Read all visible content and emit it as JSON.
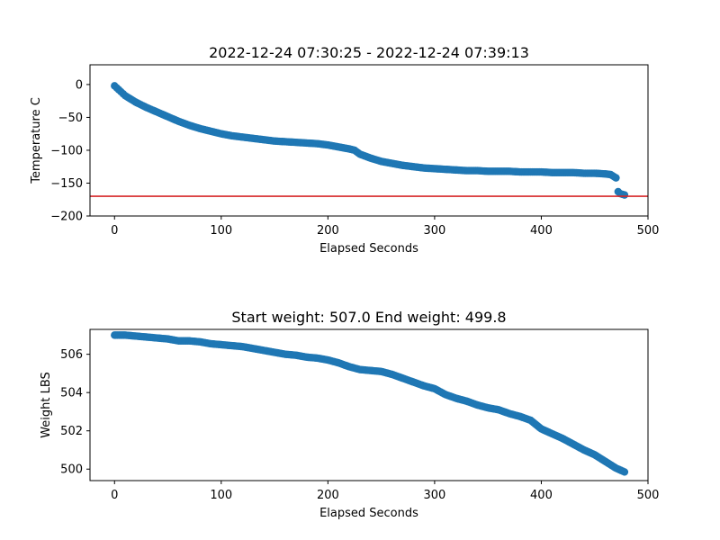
{
  "chart_data": [
    {
      "type": "scatter",
      "title": "2022-12-24 07:30:25 - 2022-12-24 07:39:13",
      "xlabel": "Elapsed Seconds",
      "ylabel": "Temperature C",
      "xlim": [
        -23,
        500
      ],
      "ylim": [
        -200,
        30
      ],
      "xticks": [
        0,
        100,
        200,
        300,
        400,
        500
      ],
      "yticks": [
        0,
        -50,
        -100,
        -150,
        -200
      ],
      "grid": false,
      "marker_color": "#1f77b4",
      "reference_line": {
        "y": -170,
        "color": "#d62728"
      },
      "x": [
        0,
        2,
        4,
        6,
        8,
        10,
        15,
        20,
        25,
        30,
        40,
        50,
        60,
        70,
        80,
        90,
        100,
        110,
        120,
        130,
        140,
        150,
        160,
        170,
        180,
        190,
        200,
        210,
        220,
        225,
        230,
        240,
        250,
        260,
        270,
        280,
        290,
        300,
        310,
        320,
        330,
        340,
        350,
        360,
        370,
        380,
        390,
        400,
        410,
        420,
        430,
        440,
        450,
        460,
        465,
        470,
        472,
        474,
        476,
        478
      ],
      "y": [
        -2,
        -5,
        -8,
        -11,
        -14,
        -17,
        -22,
        -27,
        -31,
        -35,
        -42,
        -49,
        -56,
        -62,
        -67,
        -71,
        -75,
        -78,
        -80,
        -82,
        -84,
        -86,
        -87,
        -88,
        -89,
        -90,
        -92,
        -95,
        -98,
        -100,
        -106,
        -112,
        -117,
        -120,
        -123,
        -125,
        -127,
        -128,
        -129,
        -130,
        -131,
        -131,
        -132,
        -132,
        -132,
        -133,
        -133,
        -133,
        -134,
        -134,
        -134,
        -135,
        -135,
        -136,
        -137,
        -142,
        -163,
        -166,
        -167,
        -168
      ]
    },
    {
      "type": "scatter",
      "title": "Start weight: 507.0 End weight: 499.8",
      "xlabel": "Elapsed Seconds",
      "ylabel": "Weight LBS",
      "xlim": [
        -23,
        500
      ],
      "ylim": [
        499.4,
        507.3
      ],
      "xticks": [
        0,
        100,
        200,
        300,
        400,
        500
      ],
      "yticks": [
        500,
        502,
        504,
        506
      ],
      "grid": false,
      "marker_color": "#1f77b4",
      "x": [
        0,
        10,
        20,
        30,
        40,
        50,
        60,
        70,
        80,
        90,
        100,
        110,
        120,
        130,
        140,
        150,
        160,
        170,
        180,
        190,
        200,
        210,
        220,
        230,
        240,
        250,
        260,
        270,
        280,
        290,
        300,
        310,
        320,
        330,
        340,
        350,
        360,
        370,
        380,
        390,
        400,
        410,
        420,
        430,
        440,
        450,
        460,
        470,
        478
      ],
      "y": [
        507.0,
        507.0,
        506.95,
        506.9,
        506.85,
        506.8,
        506.7,
        506.7,
        506.65,
        506.55,
        506.5,
        506.45,
        506.4,
        506.3,
        506.2,
        506.1,
        506.0,
        505.95,
        505.85,
        505.8,
        505.7,
        505.55,
        505.35,
        505.2,
        505.15,
        505.1,
        504.95,
        504.75,
        504.55,
        504.35,
        504.2,
        503.9,
        503.7,
        503.55,
        503.35,
        503.2,
        503.1,
        502.9,
        502.75,
        502.55,
        502.1,
        501.85,
        501.6,
        501.3,
        501.0,
        500.75,
        500.4,
        500.05,
        499.85
      ]
    }
  ]
}
